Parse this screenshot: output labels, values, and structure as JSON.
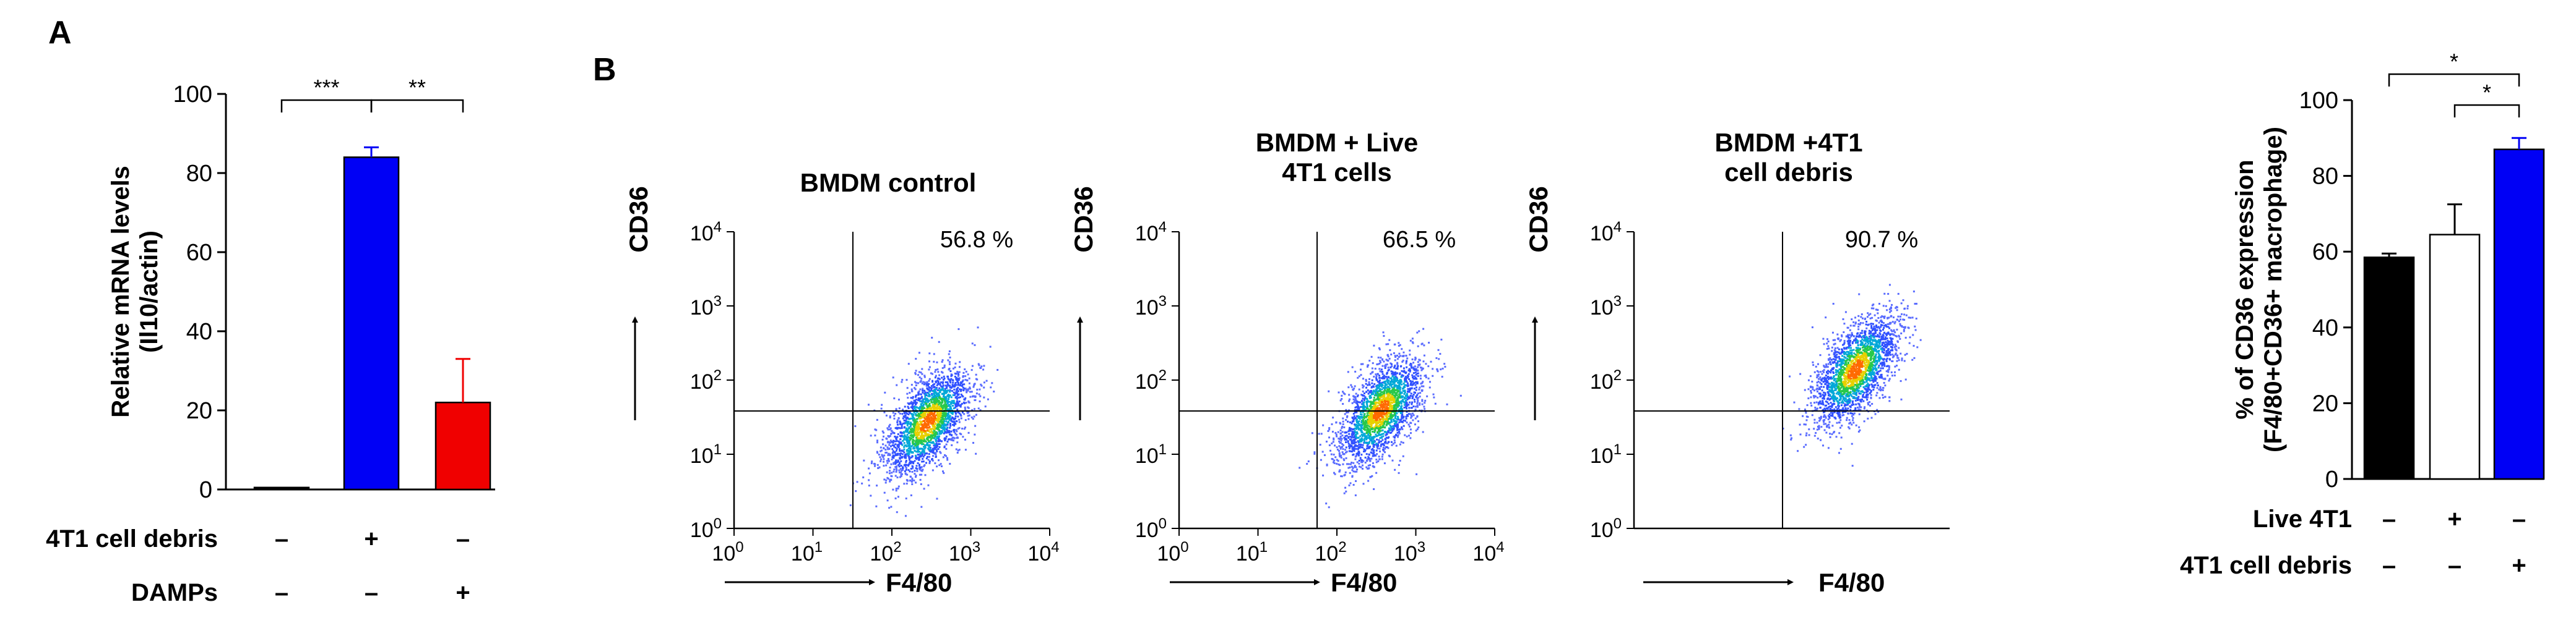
{
  "panels": {
    "A": {
      "letter": "A"
    },
    "B": {
      "letter": "B"
    }
  },
  "colors": {
    "blue": "#0000f5",
    "red": "#f00000",
    "black": "#000000",
    "white": "#ffffff"
  },
  "chart_data": [
    {
      "id": "A",
      "type": "bar",
      "ylabel_line1": "Relative mRNA levels",
      "ylabel_line2": "(Il10/actin)",
      "ylim": [
        0,
        100
      ],
      "yticks": [
        0,
        20,
        40,
        60,
        80,
        100
      ],
      "values": [
        0.5,
        84,
        22
      ],
      "errors": [
        0,
        2.5,
        11
      ],
      "bar_colors": [
        "#000000",
        "#0000f5",
        "#f00000"
      ],
      "condition_rows": [
        {
          "label": "4T1 cell debris",
          "marks": [
            "–",
            "+",
            "–"
          ]
        },
        {
          "label": "DAMPs",
          "marks": [
            "–",
            "–",
            "+"
          ]
        }
      ],
      "significance": [
        {
          "from": 0,
          "to": 1,
          "label": "***"
        },
        {
          "from": 1,
          "to": 2,
          "label": "**"
        }
      ]
    },
    {
      "id": "B1",
      "type": "scatter",
      "title_lines": [
        "BMDM control"
      ],
      "percent": "56.8 %",
      "xlabel": "F4/80",
      "ylabel": "CD36",
      "x_axis_ticks": true,
      "center": [
        2.45,
        1.45
      ]
    },
    {
      "id": "B2",
      "type": "scatter",
      "title_lines": [
        "BMDM + Live",
        "4T1 cells"
      ],
      "percent": "66.5 %",
      "xlabel": "F4/80",
      "ylabel": "CD36",
      "x_axis_ticks": true,
      "center": [
        2.55,
        1.6
      ]
    },
    {
      "id": "B3",
      "type": "scatter",
      "title_lines": [
        "BMDM +4T1",
        "cell debris"
      ],
      "percent": "90.7 %",
      "xlabel": "F4/80",
      "ylabel": "CD36",
      "x_axis_ticks": false,
      "center": [
        2.8,
        2.15
      ]
    },
    {
      "id": "B4",
      "type": "bar",
      "ylabel_line1": "% of CD36 expression",
      "ylabel_line2": "(F4/80+CD36+ macrophage)",
      "ylim": [
        0,
        100
      ],
      "yticks": [
        0,
        20,
        40,
        60,
        80,
        100
      ],
      "values": [
        58.5,
        64.5,
        87
      ],
      "errors": [
        1,
        8,
        3
      ],
      "bar_colors": [
        "#000000",
        "#ffffff",
        "#0000f5"
      ],
      "condition_rows": [
        {
          "label": "Live 4T1",
          "marks": [
            "–",
            "+",
            "–"
          ]
        },
        {
          "label": "4T1 cell debris",
          "marks": [
            "–",
            "–",
            "+"
          ]
        }
      ],
      "significance": [
        {
          "from": 0,
          "to": 2,
          "label": "*"
        },
        {
          "from": 1,
          "to": 2,
          "label": "*"
        }
      ]
    }
  ]
}
